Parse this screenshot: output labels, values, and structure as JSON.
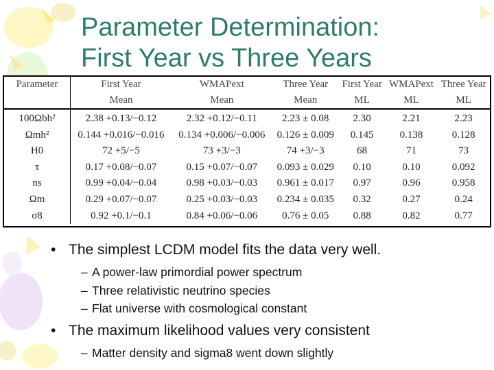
{
  "title": {
    "line1": "Parameter Determination:",
    "line2": "First Year vs Three Years"
  },
  "table": {
    "header_top": [
      "Parameter",
      "First Year",
      "WMAPext",
      "Three Year",
      "First Year",
      "WMAPext",
      "Three Year"
    ],
    "header_bottom": [
      "",
      "Mean",
      "Mean",
      "Mean",
      "ML",
      "ML",
      "ML"
    ],
    "rows": [
      {
        "param": "100Ωbh²",
        "cells": [
          "2.38 +0.13/−0.12",
          "2.32 +0.12/−0.11",
          "2.23 ± 0.08",
          "2.30",
          "2.21",
          "2.23"
        ]
      },
      {
        "param": "Ωmh²",
        "cells": [
          "0.144 +0.016/−0.016",
          "0.134 +0.006/−0.006",
          "0.126 ± 0.009",
          "0.145",
          "0.138",
          "0.128"
        ]
      },
      {
        "param": "H0",
        "cells": [
          "72 +5/−5",
          "73 +3/−3",
          "74 +3/−3",
          "68",
          "71",
          "73"
        ]
      },
      {
        "param": "τ",
        "cells": [
          "0.17 +0.08/−0.07",
          "0.15 +0.07/−0.07",
          "0.093 ± 0.029",
          "0.10",
          "0.10",
          "0.092"
        ]
      },
      {
        "param": "ns",
        "cells": [
          "0.99 +0.04/−0.04",
          "0.98 +0.03/−0.03",
          "0.961 ± 0.017",
          "0.97",
          "0.96",
          "0.958"
        ]
      },
      {
        "param": "Ωm",
        "cells": [
          "0.29 +0.07/−0.07",
          "0.25 +0.03/−0.03",
          "0.234 ± 0.035",
          "0.32",
          "0.27",
          "0.24"
        ]
      },
      {
        "param": "σ8",
        "cells": [
          "0.92 +0.1/−0.1",
          "0.84 +0.06/−0.06",
          "0.76 ± 0.05",
          "0.88",
          "0.82",
          "0.77"
        ]
      }
    ]
  },
  "bullets": [
    {
      "text": "The simplest LCDM model fits the data very well.",
      "sub": [
        "A power-law primordial power spectrum",
        "Three relativistic neutrino  species",
        "Flat universe with cosmological constant"
      ]
    },
    {
      "text": "The maximum likelihood values very consistent",
      "sub": [
        "Matter density and sigma8 went down slightly"
      ]
    }
  ],
  "glyphs": {
    "bullet": "•",
    "dash": "–"
  },
  "colors": {
    "title": "#2e7d6b",
    "decor_yellow": "#f3f29a",
    "decor_lavender": "#ece0f7",
    "decor_green": "#dff5d2"
  }
}
